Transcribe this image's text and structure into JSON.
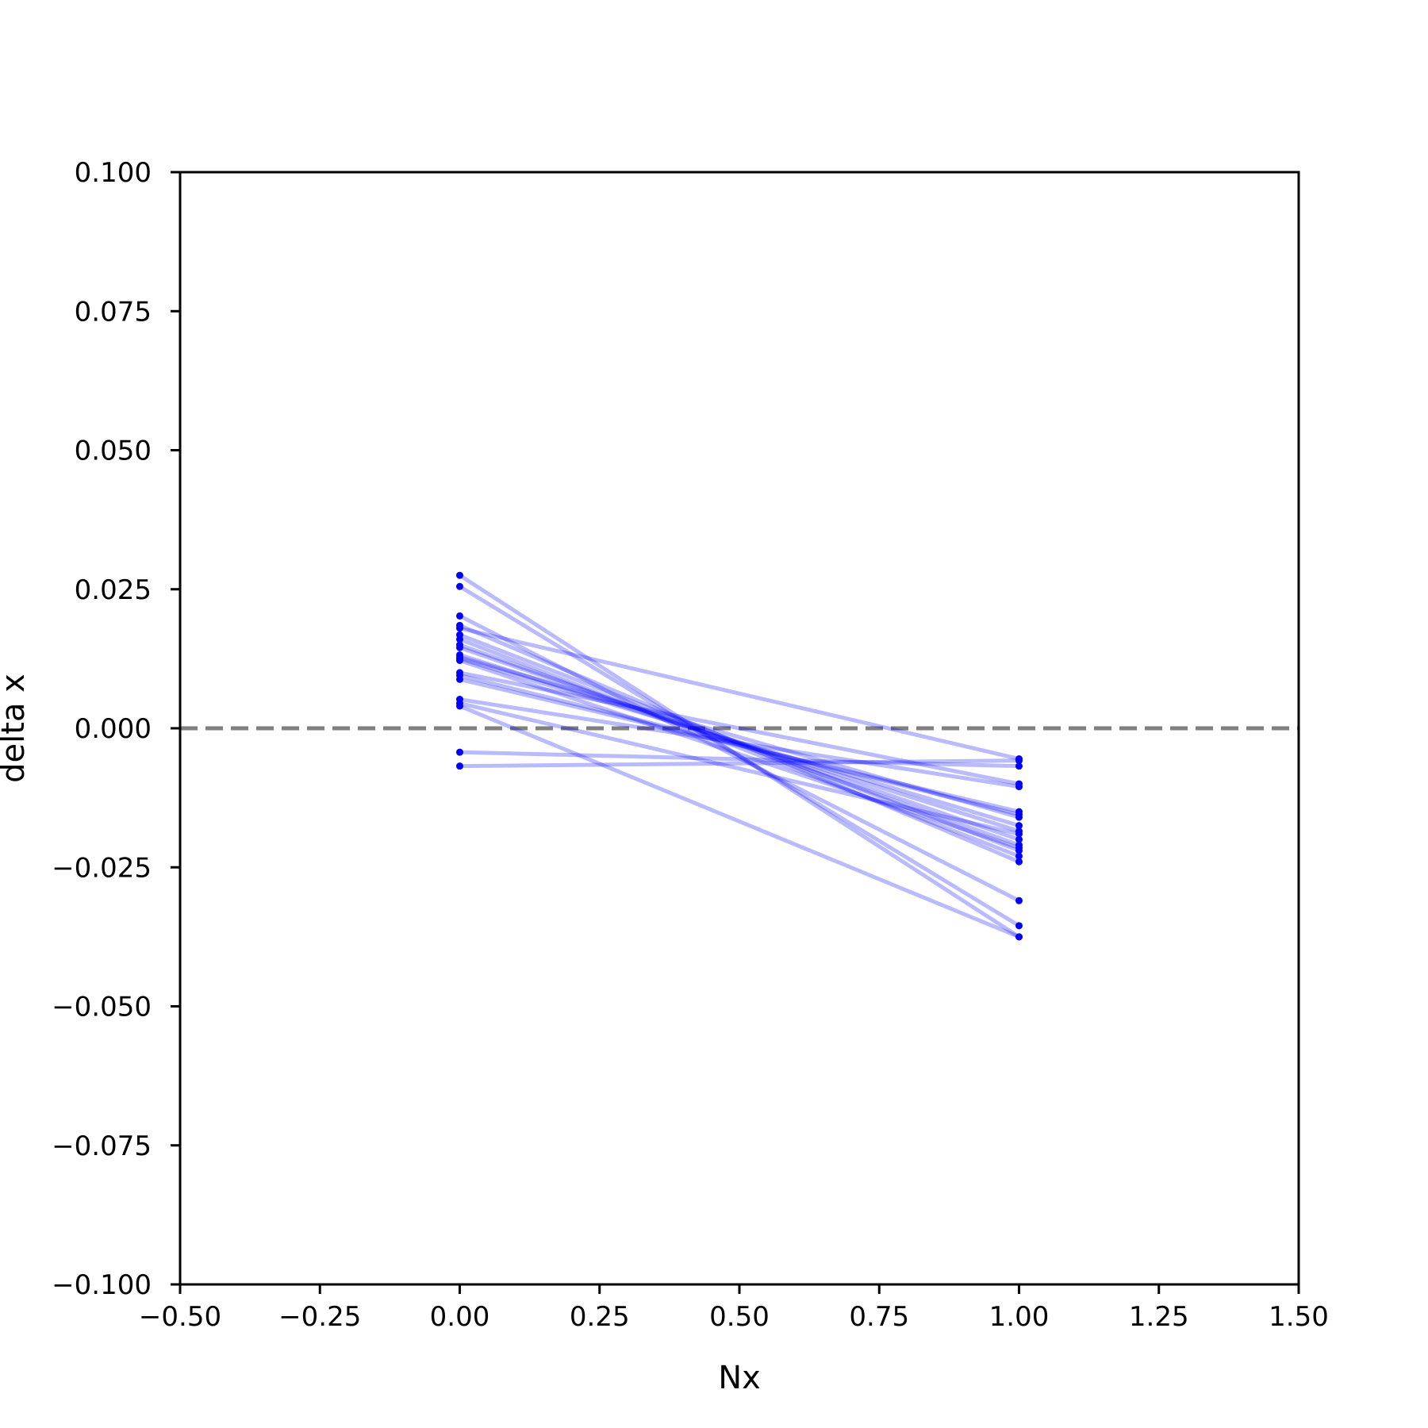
{
  "chart_data": {
    "type": "line",
    "title": "",
    "xlabel": "Nx",
    "ylabel": "delta x",
    "xlim": [
      -0.5,
      1.5
    ],
    "ylim": [
      -0.1,
      0.1
    ],
    "xticks": [
      -0.5,
      -0.25,
      0.0,
      0.25,
      0.5,
      0.75,
      1.0,
      1.25,
      1.5
    ],
    "yticks": [
      -0.1,
      -0.075,
      -0.05,
      -0.025,
      0.0,
      0.025,
      0.05,
      0.075,
      0.1
    ],
    "xtick_labels": [
      "−0.50",
      "−0.25",
      "0.00",
      "0.25",
      "0.50",
      "0.75",
      "1.00",
      "1.25",
      "1.50"
    ],
    "ytick_labels": [
      "−0.100",
      "−0.075",
      "−0.050",
      "−0.025",
      "0.000",
      "0.025",
      "0.050",
      "0.075",
      "0.100"
    ],
    "reference_line": {
      "y": 0.0,
      "style": "dashed",
      "color": "#808080"
    },
    "series_color": "#0000ff",
    "line_alpha": 0.27,
    "grid": false,
    "legend": "none",
    "x": [
      0,
      1
    ],
    "series": [
      {
        "values": [
          0.0275,
          -0.0375
        ]
      },
      {
        "values": [
          0.0255,
          -0.0355
        ]
      },
      {
        "values": [
          0.0202,
          -0.031
        ]
      },
      {
        "values": [
          0.0185,
          -0.024
        ]
      },
      {
        "values": [
          0.018,
          -0.0055
        ]
      },
      {
        "values": [
          0.0168,
          -0.022
        ]
      },
      {
        "values": [
          0.016,
          -0.023
        ]
      },
      {
        "values": [
          0.015,
          -0.021
        ]
      },
      {
        "values": [
          0.0145,
          -0.02
        ]
      },
      {
        "values": [
          0.0132,
          -0.0185
        ]
      },
      {
        "values": [
          0.0128,
          -0.016
        ]
      },
      {
        "values": [
          0.0125,
          -0.0175
        ]
      },
      {
        "values": [
          0.0122,
          -0.0215
        ]
      },
      {
        "values": [
          0.01,
          -0.01
        ]
      },
      {
        "values": [
          0.0095,
          -0.0155
        ]
      },
      {
        "values": [
          0.0088,
          -0.015
        ]
      },
      {
        "values": [
          0.0052,
          -0.0105
        ]
      },
      {
        "values": [
          0.0045,
          -0.019
        ]
      },
      {
        "values": [
          0.004,
          -0.0375
        ]
      },
      {
        "values": [
          -0.0043,
          -0.0068
        ]
      },
      {
        "values": [
          -0.0068,
          -0.0058
        ]
      }
    ]
  }
}
